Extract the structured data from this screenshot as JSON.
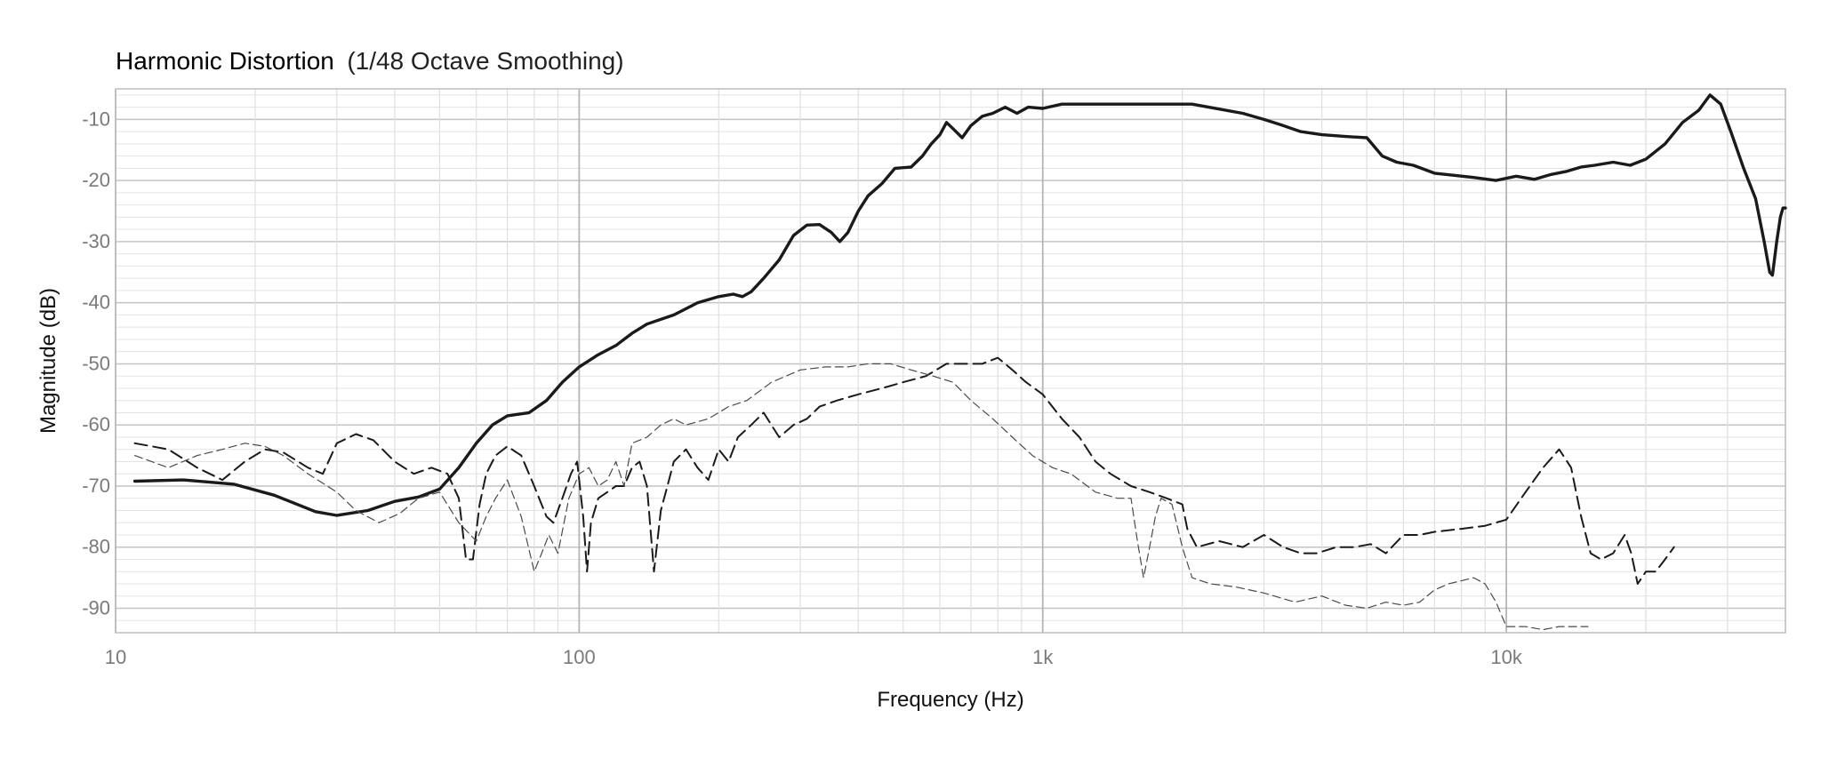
{
  "chart_data": {
    "type": "line",
    "title": "Harmonic Distortion",
    "subtitle": "(1/48 Octave Smoothing)",
    "xlabel": "Frequency (Hz)",
    "ylabel": "Magnitude (dB)",
    "xscale": "log",
    "xlim": [
      10,
      40000
    ],
    "ylim": [
      -94,
      -5
    ],
    "grid": true,
    "x_ticks": [
      {
        "value": 10,
        "label": "10"
      },
      {
        "value": 100,
        "label": "100"
      },
      {
        "value": 1000,
        "label": "1k"
      },
      {
        "value": 10000,
        "label": "10k"
      }
    ],
    "y_ticks": [
      {
        "value": -10,
        "label": "-10"
      },
      {
        "value": -20,
        "label": "-20"
      },
      {
        "value": -30,
        "label": "-30"
      },
      {
        "value": -40,
        "label": "-40"
      },
      {
        "value": -50,
        "label": "-50"
      },
      {
        "value": -60,
        "label": "-60"
      },
      {
        "value": -70,
        "label": "-70"
      },
      {
        "value": -80,
        "label": "-80"
      },
      {
        "value": -90,
        "label": "-90"
      }
    ],
    "series": [
      {
        "style": "solid-thick",
        "color": "#1a1a1a",
        "points": [
          [
            11,
            -69.2
          ],
          [
            14,
            -69
          ],
          [
            18,
            -69.7
          ],
          [
            22,
            -71.5
          ],
          [
            27,
            -74.2
          ],
          [
            30,
            -74.8
          ],
          [
            35,
            -74
          ],
          [
            40,
            -72.5
          ],
          [
            45,
            -71.8
          ],
          [
            50,
            -70.5
          ],
          [
            55,
            -67
          ],
          [
            60,
            -63
          ],
          [
            65,
            -60
          ],
          [
            70,
            -58.5
          ],
          [
            78,
            -58
          ],
          [
            85,
            -56
          ],
          [
            92,
            -53
          ],
          [
            100,
            -50.5
          ],
          [
            110,
            -48.5
          ],
          [
            120,
            -47
          ],
          [
            130,
            -45
          ],
          [
            140,
            -43.5
          ],
          [
            160,
            -42
          ],
          [
            180,
            -40
          ],
          [
            200,
            -39
          ],
          [
            215,
            -38.6
          ],
          [
            225,
            -39
          ],
          [
            235,
            -38.2
          ],
          [
            250,
            -36
          ],
          [
            270,
            -33
          ],
          [
            290,
            -29
          ],
          [
            310,
            -27.3
          ],
          [
            330,
            -27.2
          ],
          [
            350,
            -28.5
          ],
          [
            365,
            -30
          ],
          [
            380,
            -28.5
          ],
          [
            400,
            -25
          ],
          [
            420,
            -22.5
          ],
          [
            450,
            -20.5
          ],
          [
            480,
            -18
          ],
          [
            520,
            -17.8
          ],
          [
            550,
            -16
          ],
          [
            575,
            -14
          ],
          [
            600,
            -12.5
          ],
          [
            620,
            -10.5
          ],
          [
            640,
            -11.5
          ],
          [
            670,
            -13
          ],
          [
            700,
            -11
          ],
          [
            740,
            -9.5
          ],
          [
            780,
            -9
          ],
          [
            830,
            -8
          ],
          [
            880,
            -9
          ],
          [
            930,
            -8
          ],
          [
            1000,
            -8.2
          ],
          [
            1100,
            -7.5
          ],
          [
            1300,
            -7.5
          ],
          [
            1500,
            -7.5
          ],
          [
            1800,
            -7.5
          ],
          [
            2100,
            -7.5
          ],
          [
            2400,
            -8.3
          ],
          [
            2700,
            -9
          ],
          [
            3000,
            -10
          ],
          [
            3300,
            -11
          ],
          [
            3600,
            -12
          ],
          [
            4000,
            -12.5
          ],
          [
            4500,
            -12.8
          ],
          [
            5000,
            -13
          ],
          [
            5400,
            -16
          ],
          [
            5800,
            -17
          ],
          [
            6300,
            -17.5
          ],
          [
            7000,
            -18.8
          ],
          [
            7800,
            -19.2
          ],
          [
            8500,
            -19.5
          ],
          [
            9500,
            -20
          ],
          [
            10500,
            -19.3
          ],
          [
            11500,
            -19.8
          ],
          [
            12500,
            -19
          ],
          [
            13500,
            -18.5
          ],
          [
            14500,
            -17.8
          ],
          [
            15500,
            -17.5
          ],
          [
            17000,
            -17
          ],
          [
            18500,
            -17.5
          ],
          [
            20000,
            -16.5
          ],
          [
            22000,
            -14
          ],
          [
            24000,
            -10.5
          ],
          [
            26000,
            -8.5
          ],
          [
            27500,
            -6
          ],
          [
            29000,
            -7.5
          ],
          [
            30500,
            -12
          ],
          [
            32500,
            -18
          ],
          [
            34500,
            -23
          ],
          [
            36000,
            -30
          ],
          [
            37000,
            -35
          ],
          [
            37500,
            -35.5
          ],
          [
            38300,
            -30
          ],
          [
            39000,
            -26
          ],
          [
            39500,
            -24.5
          ],
          [
            40000,
            -24.5
          ]
        ]
      },
      {
        "style": "dashed-medium",
        "color": "#1a1a1a",
        "points": [
          [
            11,
            -63
          ],
          [
            13,
            -64
          ],
          [
            15,
            -67
          ],
          [
            17,
            -69
          ],
          [
            19,
            -66
          ],
          [
            21,
            -64
          ],
          [
            23,
            -64.5
          ],
          [
            26,
            -67
          ],
          [
            28,
            -68
          ],
          [
            30,
            -63
          ],
          [
            33,
            -61.5
          ],
          [
            36,
            -62.5
          ],
          [
            40,
            -66
          ],
          [
            44,
            -68
          ],
          [
            48,
            -67
          ],
          [
            52,
            -68
          ],
          [
            55,
            -72
          ],
          [
            57,
            -82
          ],
          [
            59,
            -82
          ],
          [
            61,
            -73
          ],
          [
            63,
            -68
          ],
          [
            66,
            -65
          ],
          [
            70,
            -63.5
          ],
          [
            75,
            -65
          ],
          [
            80,
            -70
          ],
          [
            85,
            -75
          ],
          [
            88,
            -76
          ],
          [
            92,
            -72
          ],
          [
            96,
            -68
          ],
          [
            99,
            -66
          ],
          [
            102,
            -75
          ],
          [
            104,
            -84
          ],
          [
            106,
            -76
          ],
          [
            110,
            -72
          ],
          [
            115,
            -71
          ],
          [
            120,
            -70
          ],
          [
            125,
            -70
          ],
          [
            130,
            -67
          ],
          [
            135,
            -66
          ],
          [
            140,
            -70
          ],
          [
            145,
            -84
          ],
          [
            150,
            -74
          ],
          [
            155,
            -70
          ],
          [
            160,
            -66
          ],
          [
            170,
            -64
          ],
          [
            180,
            -67
          ],
          [
            190,
            -69
          ],
          [
            200,
            -64
          ],
          [
            210,
            -66
          ],
          [
            220,
            -62
          ],
          [
            235,
            -60
          ],
          [
            250,
            -58
          ],
          [
            270,
            -62
          ],
          [
            290,
            -60
          ],
          [
            310,
            -59
          ],
          [
            330,
            -57
          ],
          [
            360,
            -56
          ],
          [
            400,
            -55
          ],
          [
            450,
            -54
          ],
          [
            500,
            -53
          ],
          [
            560,
            -52
          ],
          [
            620,
            -50
          ],
          [
            680,
            -50
          ],
          [
            740,
            -50
          ],
          [
            800,
            -49
          ],
          [
            860,
            -51
          ],
          [
            920,
            -53
          ],
          [
            1000,
            -55
          ],
          [
            1100,
            -59
          ],
          [
            1200,
            -62
          ],
          [
            1300,
            -66
          ],
          [
            1400,
            -68
          ],
          [
            1550,
            -70
          ],
          [
            1700,
            -71
          ],
          [
            1850,
            -72
          ],
          [
            2000,
            -73
          ],
          [
            2050,
            -77
          ],
          [
            2150,
            -80
          ],
          [
            2400,
            -79
          ],
          [
            2700,
            -80
          ],
          [
            3000,
            -78
          ],
          [
            3300,
            -80
          ],
          [
            3600,
            -81
          ],
          [
            3900,
            -81
          ],
          [
            4300,
            -80
          ],
          [
            4700,
            -80
          ],
          [
            5100,
            -79.5
          ],
          [
            5500,
            -81
          ],
          [
            6000,
            -78
          ],
          [
            6500,
            -78
          ],
          [
            7000,
            -77.5
          ],
          [
            8000,
            -77
          ],
          [
            9000,
            -76.5
          ],
          [
            10000,
            -75.5
          ],
          [
            11000,
            -71
          ],
          [
            12000,
            -67
          ],
          [
            13000,
            -64
          ],
          [
            13800,
            -67
          ],
          [
            14500,
            -75
          ],
          [
            15200,
            -81
          ],
          [
            16000,
            -82
          ],
          [
            17000,
            -81
          ],
          [
            18000,
            -78
          ],
          [
            18600,
            -81
          ],
          [
            19200,
            -86
          ],
          [
            20000,
            -84
          ],
          [
            21000,
            -84
          ],
          [
            22000,
            -82
          ],
          [
            23000,
            -80
          ]
        ]
      },
      {
        "style": "dashed-thin",
        "color": "#4a4a4a",
        "points": [
          [
            11,
            -65
          ],
          [
            13,
            -67
          ],
          [
            15,
            -65
          ],
          [
            17,
            -64
          ],
          [
            19,
            -63
          ],
          [
            21,
            -63.5
          ],
          [
            23,
            -65
          ],
          [
            26,
            -68
          ],
          [
            30,
            -71
          ],
          [
            33,
            -74
          ],
          [
            37,
            -76
          ],
          [
            41,
            -74.5
          ],
          [
            45,
            -72
          ],
          [
            50,
            -71
          ],
          [
            55,
            -76
          ],
          [
            60,
            -79
          ],
          [
            63,
            -75
          ],
          [
            66,
            -72
          ],
          [
            70,
            -69
          ],
          [
            75,
            -75
          ],
          [
            80,
            -84
          ],
          [
            83,
            -81
          ],
          [
            86,
            -78
          ],
          [
            90,
            -81
          ],
          [
            95,
            -72
          ],
          [
            100,
            -68
          ],
          [
            105,
            -67
          ],
          [
            110,
            -70
          ],
          [
            115,
            -69
          ],
          [
            120,
            -66
          ],
          [
            125,
            -70
          ],
          [
            130,
            -63
          ],
          [
            140,
            -62
          ],
          [
            150,
            -60
          ],
          [
            160,
            -59
          ],
          [
            170,
            -60
          ],
          [
            190,
            -59
          ],
          [
            210,
            -57
          ],
          [
            230,
            -56
          ],
          [
            260,
            -53
          ],
          [
            300,
            -51
          ],
          [
            340,
            -50.5
          ],
          [
            380,
            -50.5
          ],
          [
            420,
            -50
          ],
          [
            470,
            -50
          ],
          [
            520,
            -51
          ],
          [
            580,
            -52
          ],
          [
            640,
            -53
          ],
          [
            700,
            -56
          ],
          [
            780,
            -59
          ],
          [
            860,
            -62
          ],
          [
            950,
            -65
          ],
          [
            1050,
            -67
          ],
          [
            1150,
            -68
          ],
          [
            1300,
            -71
          ],
          [
            1450,
            -72
          ],
          [
            1550,
            -72
          ],
          [
            1600,
            -79
          ],
          [
            1650,
            -85
          ],
          [
            1700,
            -80
          ],
          [
            1750,
            -75
          ],
          [
            1800,
            -72
          ],
          [
            1900,
            -73
          ],
          [
            2000,
            -80
          ],
          [
            2100,
            -85
          ],
          [
            2300,
            -86
          ],
          [
            2600,
            -86.5
          ],
          [
            3000,
            -87.5
          ],
          [
            3500,
            -89
          ],
          [
            4000,
            -88
          ],
          [
            4500,
            -89.5
          ],
          [
            5000,
            -90
          ],
          [
            5500,
            -89
          ],
          [
            6000,
            -89.5
          ],
          [
            6500,
            -89
          ],
          [
            7000,
            -87
          ],
          [
            7500,
            -86
          ],
          [
            8000,
            -85.5
          ],
          [
            8500,
            -85
          ],
          [
            9000,
            -86
          ],
          [
            9500,
            -89
          ],
          [
            10000,
            -93
          ],
          [
            11000,
            -93
          ],
          [
            12000,
            -93.5
          ],
          [
            13000,
            -93
          ],
          [
            14000,
            -93
          ],
          [
            15000,
            -93
          ]
        ]
      }
    ]
  }
}
